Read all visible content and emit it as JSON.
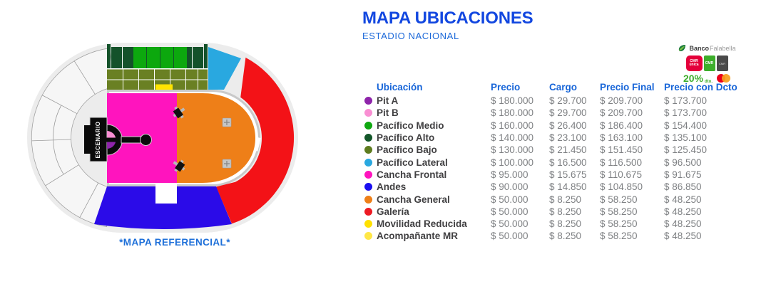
{
  "title": "MAPA UBICACIONES",
  "subtitle": "ESTADIO NACIONAL",
  "map": {
    "caption": "*MAPA REFERENCIAL*",
    "stage_label": "ESCENARIO"
  },
  "promo": {
    "bank_bold": "Banco",
    "bank_light": "Falabella",
    "card_red_line1": "CMR",
    "card_red_line2": "única",
    "card_green_label": "CMR",
    "card_dark_label": "CMR",
    "discount": "20%",
    "discount_unit": "dto."
  },
  "table": {
    "headers": [
      "Ubicación",
      "Precio",
      "Cargo",
      "Precio Final",
      "Precio con Dcto"
    ],
    "rows": [
      {
        "color": "#8E24AA",
        "label": "Pit A",
        "precio": "$ 180.000",
        "cargo": "$ 29.700",
        "final": "$ 209.700",
        "dcto": "$ 173.700"
      },
      {
        "color": "#F98FD3",
        "label": "Pit B",
        "precio": "$ 180.000",
        "cargo": "$ 29.700",
        "final": "$ 209.700",
        "dcto": "$ 173.700"
      },
      {
        "color": "#0FA811",
        "label": "Pacífico Medio",
        "precio": "$ 160.000",
        "cargo": "$ 26.400",
        "final": "$ 186.400",
        "dcto": "$ 154.400"
      },
      {
        "color": "#14572A",
        "label": "Pacífico Alto",
        "precio": "$ 140.000",
        "cargo": "$ 23.100",
        "final": "$ 163.100",
        "dcto": "$ 135.100"
      },
      {
        "color": "#5E7C1F",
        "label": "Pacífico Bajo",
        "precio": "$ 130.000",
        "cargo": "$ 21.450",
        "final": "$ 151.450",
        "dcto": "$ 125.450"
      },
      {
        "color": "#29A8E0",
        "label": "Pacífico Lateral",
        "precio": "$ 100.000",
        "cargo": "$ 16.500",
        "final": "$ 116.500",
        "dcto": "$ 96.500"
      },
      {
        "color": "#FF14BE",
        "label": "Cancha Frontal",
        "precio": "$ 95.000",
        "cargo": "$ 15.675",
        "final": "$ 110.675",
        "dcto": "$ 91.675"
      },
      {
        "color": "#1A0FF0",
        "label": "Andes",
        "precio": "$ 90.000",
        "cargo": "$ 14.850",
        "final": "$ 104.850",
        "dcto": "$ 86.850"
      },
      {
        "color": "#EE7F18",
        "label": "Cancha General",
        "precio": "$ 50.000",
        "cargo": "$ 8.250",
        "final": "$ 58.250",
        "dcto": "$ 48.250"
      },
      {
        "color": "#ED1B24",
        "label": "Galería",
        "precio": "$ 50.000",
        "cargo": "$ 8.250",
        "final": "$ 58.250",
        "dcto": "$ 48.250"
      },
      {
        "color": "#FFE100",
        "label": "Movilidad Reducida",
        "precio": "$ 50.000",
        "cargo": "$ 8.250",
        "final": "$ 58.250",
        "dcto": "$ 48.250"
      },
      {
        "color": "#FFE746",
        "label": "Acompañante MR",
        "precio": "$ 50.000",
        "cargo": "$ 8.250",
        "final": "$ 58.250",
        "dcto": "$ 48.250"
      }
    ]
  },
  "colors": {
    "pit_a": "#8E24AA",
    "pit_b": "#F98FD3",
    "pacifico_medio": "#0CA80E",
    "pacifico_alto": "#14522A",
    "pacifico_bajo": "#6A8023",
    "pacifico_lateral": "#29A8E0",
    "cancha_frontal": "#FF14BE",
    "andes": "#2B0BE8",
    "cancha_general": "#EE7F18",
    "galeria": "#F31217",
    "movilidad_reducida": "#FFE400",
    "stadium_shell": "#ECECEC",
    "ring_fill": "#F6F6F6",
    "track_gray": "#C9C9C9",
    "stage_black": "#0A0A0A",
    "title_blue": "#1247E0",
    "subtitle_blue": "#1B68D9"
  }
}
